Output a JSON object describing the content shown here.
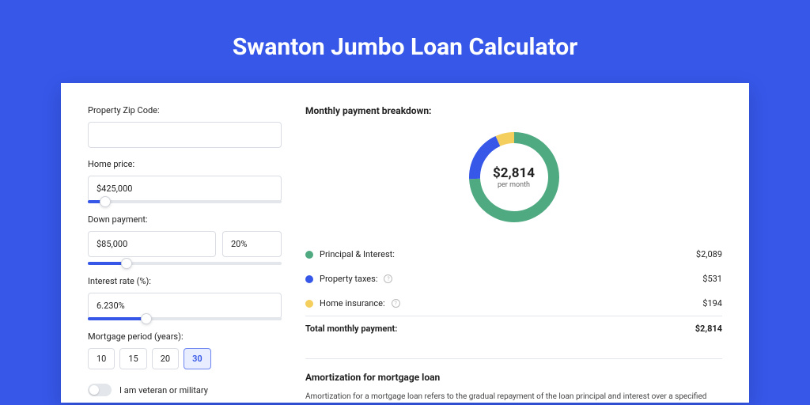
{
  "page": {
    "title": "Swanton Jumbo Loan Calculator",
    "bg_color": "#3657e8"
  },
  "form": {
    "zip": {
      "label": "Property Zip Code:",
      "value": ""
    },
    "price": {
      "label": "Home price:",
      "value": "$425,000",
      "slider_pct": 9
    },
    "down": {
      "label": "Down payment:",
      "value": "$85,000",
      "pct_value": "20%",
      "slider_pct": 20
    },
    "rate": {
      "label": "Interest rate (%):",
      "value": "6.230%",
      "slider_pct": 30
    },
    "period": {
      "label": "Mortgage period (years):",
      "options": [
        {
          "label": "10",
          "active": false
        },
        {
          "label": "15",
          "active": false
        },
        {
          "label": "20",
          "active": false
        },
        {
          "label": "30",
          "active": true
        }
      ]
    },
    "veteran": {
      "label": "I am veteran or military",
      "on": false
    }
  },
  "breakdown": {
    "title": "Monthly payment breakdown:",
    "total_amount": "$2,814",
    "total_sub": "per month",
    "donut": {
      "type": "donut",
      "segments": [
        {
          "name": "principal_interest",
          "pct": 74.2,
          "color": "#4fa981"
        },
        {
          "name": "property_taxes",
          "pct": 18.9,
          "color": "#3657e8"
        },
        {
          "name": "home_insurance",
          "pct": 6.9,
          "color": "#f4cf5d"
        }
      ],
      "stroke_width": 14,
      "background_color": "#ffffff"
    },
    "rows": [
      {
        "dot_color": "#4fa981",
        "label": "Principal & Interest:",
        "info": false,
        "value": "$2,089"
      },
      {
        "dot_color": "#3657e8",
        "label": "Property taxes:",
        "info": true,
        "value": "$531"
      },
      {
        "dot_color": "#f4cf5d",
        "label": "Home insurance:",
        "info": true,
        "value": "$194"
      }
    ],
    "total_row": {
      "label": "Total monthly payment:",
      "value": "$2,814"
    }
  },
  "amort": {
    "title": "Amortization for mortgage loan",
    "text": "Amortization for a mortgage loan refers to the gradual repayment of the loan principal and interest over a specified"
  }
}
